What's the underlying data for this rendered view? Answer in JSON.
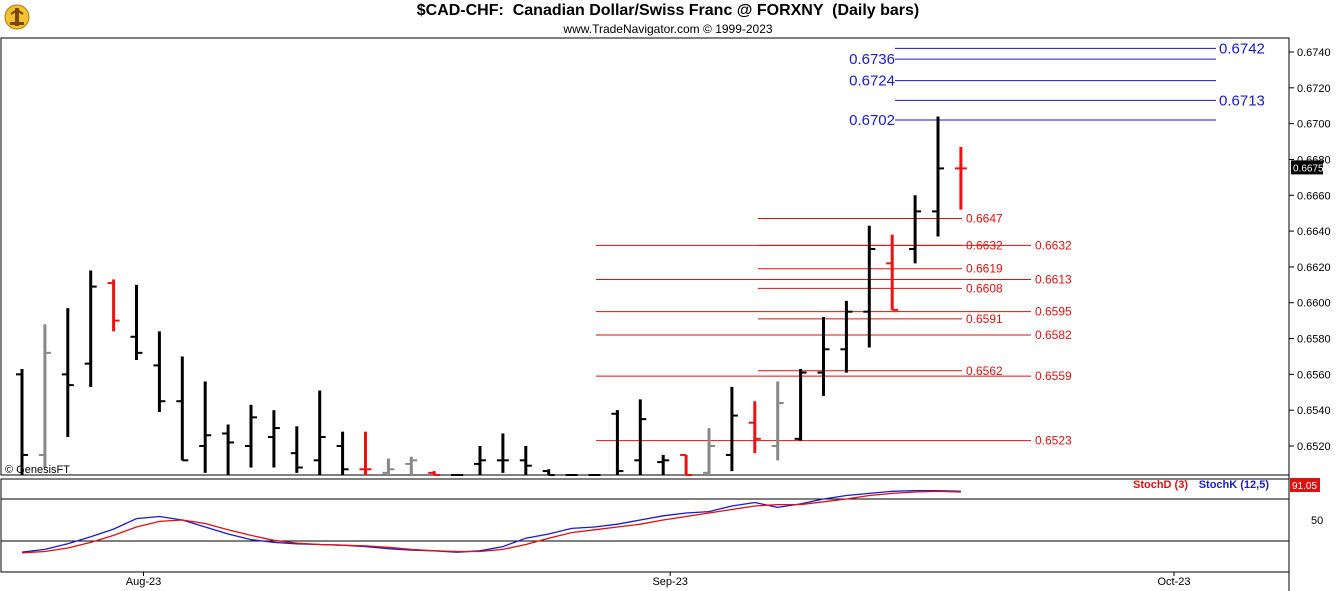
{
  "header": {
    "title": "$CAD-CHF:  Canadian Dollar/Swiss Franc @ FORXNY  (Daily bars)",
    "subtitle": "www.TradeNavigator.com © 1999-2023",
    "watermark": "© GenesisFT",
    "logo_icon": "trade-navigator-logo-icon"
  },
  "colors": {
    "up_bar": "#000000",
    "down_bar": "#ee1111",
    "flat_bar": "#888888",
    "resistance_line": "#1a1ad0",
    "support_line": "#dd1111",
    "stoch_d": "#dd1111",
    "stoch_k": "#1a1ad0",
    "last_price_bg": "#000000",
    "stoch_value_bg": "#dd1111"
  },
  "chart_data": [
    {
      "type": "ohlc",
      "title": "$CAD-CHF:  Canadian Dollar/Swiss Franc @ FORXNY  (Daily bars)",
      "ylim": [
        0.6503,
        0.675
      ],
      "y_ticks": [
        "0.6520",
        "0.6540",
        "0.6560",
        "0.6580",
        "0.6600",
        "0.6620",
        "0.6640",
        "0.6660",
        "0.6680",
        "0.6700",
        "0.6720",
        "0.6740"
      ],
      "x_tick_labels": [
        {
          "label": "Aug-23",
          "bar_index": 5
        },
        {
          "label": "Sep-23",
          "bar_index": 28
        },
        {
          "label": "Oct-23",
          "bar_index": 50
        }
      ],
      "last_price": "0.6675",
      "bars": [
        {
          "o": 0.656,
          "h": 0.6563,
          "l": 0.6503,
          "c": 0.6515,
          "dir": "up"
        },
        {
          "o": 0.6515,
          "h": 0.6588,
          "l": 0.6508,
          "c": 0.6572,
          "dir": "flat"
        },
        {
          "o": 0.656,
          "h": 0.6597,
          "l": 0.6525,
          "c": 0.6554,
          "dir": "up"
        },
        {
          "o": 0.6566,
          "h": 0.6618,
          "l": 0.6553,
          "c": 0.6609,
          "dir": "up"
        },
        {
          "o": 0.6611,
          "h": 0.6613,
          "l": 0.6584,
          "c": 0.659,
          "dir": "down"
        },
        {
          "o": 0.6581,
          "h": 0.661,
          "l": 0.6568,
          "c": 0.6572,
          "dir": "up"
        },
        {
          "o": 0.6565,
          "h": 0.6584,
          "l": 0.6539,
          "c": 0.6545,
          "dir": "up"
        },
        {
          "o": 0.6545,
          "h": 0.657,
          "l": 0.6512,
          "c": 0.6512,
          "dir": "up"
        },
        {
          "o": 0.652,
          "h": 0.6556,
          "l": 0.6505,
          "c": 0.6526,
          "dir": "up"
        },
        {
          "o": 0.6527,
          "h": 0.6532,
          "l": 0.6503,
          "c": 0.6522,
          "dir": "up"
        },
        {
          "o": 0.652,
          "h": 0.6543,
          "l": 0.6508,
          "c": 0.6536,
          "dir": "up"
        },
        {
          "o": 0.6525,
          "h": 0.654,
          "l": 0.6508,
          "c": 0.653,
          "dir": "up"
        },
        {
          "o": 0.6516,
          "h": 0.6531,
          "l": 0.6505,
          "c": 0.6508,
          "dir": "up"
        },
        {
          "o": 0.6512,
          "h": 0.6551,
          "l": 0.6503,
          "c": 0.6525,
          "dir": "up"
        },
        {
          "o": 0.652,
          "h": 0.6528,
          "l": 0.6503,
          "c": 0.6507,
          "dir": "up"
        },
        {
          "o": 0.6507,
          "h": 0.6528,
          "l": 0.6503,
          "c": 0.6507,
          "dir": "down"
        },
        {
          "o": 0.6505,
          "h": 0.6513,
          "l": 0.6503,
          "c": 0.6507,
          "dir": "flat"
        },
        {
          "o": 0.651,
          "h": 0.6514,
          "l": 0.6503,
          "c": 0.6512,
          "dir": "flat"
        },
        {
          "o": 0.6505,
          "h": 0.6506,
          "l": 0.6503,
          "c": 0.6503,
          "dir": "down"
        },
        {
          "o": 0.6503,
          "h": 0.6503,
          "l": 0.6503,
          "c": 0.6503,
          "dir": "up"
        },
        {
          "o": 0.651,
          "h": 0.652,
          "l": 0.6503,
          "c": 0.6512,
          "dir": "up"
        },
        {
          "o": 0.6512,
          "h": 0.6527,
          "l": 0.6505,
          "c": 0.6512,
          "dir": "up"
        },
        {
          "o": 0.6512,
          "h": 0.652,
          "l": 0.6503,
          "c": 0.6509,
          "dir": "up"
        },
        {
          "o": 0.6506,
          "h": 0.6507,
          "l": 0.6503,
          "c": 0.6503,
          "dir": "up"
        },
        {
          "o": 0.6503,
          "h": 0.6503,
          "l": 0.6503,
          "c": 0.6503,
          "dir": "up"
        },
        {
          "o": 0.6503,
          "h": 0.6503,
          "l": 0.6503,
          "c": 0.6503,
          "dir": "up"
        },
        {
          "o": 0.6538,
          "h": 0.654,
          "l": 0.6503,
          "c": 0.6506,
          "dir": "up"
        },
        {
          "o": 0.6512,
          "h": 0.6546,
          "l": 0.6503,
          "c": 0.6535,
          "dir": "up"
        },
        {
          "o": 0.6511,
          "h": 0.6515,
          "l": 0.6503,
          "c": 0.6512,
          "dir": "up"
        },
        {
          "o": 0.6515,
          "h": 0.6515,
          "l": 0.6503,
          "c": 0.6503,
          "dir": "down"
        },
        {
          "o": 0.6505,
          "h": 0.653,
          "l": 0.6503,
          "c": 0.652,
          "dir": "flat"
        },
        {
          "o": 0.6515,
          "h": 0.6553,
          "l": 0.6506,
          "c": 0.6537,
          "dir": "up"
        },
        {
          "o": 0.6533,
          "h": 0.6545,
          "l": 0.6516,
          "c": 0.6524,
          "dir": "down"
        },
        {
          "o": 0.652,
          "h": 0.6556,
          "l": 0.6512,
          "c": 0.6544,
          "dir": "flat"
        },
        {
          "o": 0.6524,
          "h": 0.6563,
          "l": 0.6523,
          "c": 0.6561,
          "dir": "up"
        },
        {
          "o": 0.6561,
          "h": 0.6592,
          "l": 0.6548,
          "c": 0.6574,
          "dir": "up"
        },
        {
          "o": 0.6574,
          "h": 0.6601,
          "l": 0.6561,
          "c": 0.6595,
          "dir": "up"
        },
        {
          "o": 0.6595,
          "h": 0.6643,
          "l": 0.6575,
          "c": 0.663,
          "dir": "up"
        },
        {
          "o": 0.6622,
          "h": 0.6638,
          "l": 0.6596,
          "c": 0.6596,
          "dir": "down"
        },
        {
          "o": 0.663,
          "h": 0.666,
          "l": 0.6622,
          "c": 0.6651,
          "dir": "up"
        },
        {
          "o": 0.6651,
          "h": 0.6704,
          "l": 0.6637,
          "c": 0.6675,
          "dir": "up"
        },
        {
          "o": 0.6675,
          "h": 0.6687,
          "l": 0.6652,
          "c": 0.6675,
          "dir": "down"
        }
      ],
      "resistance_levels": [
        "0.6742",
        "0.6736",
        "0.6724",
        "0.6713",
        "0.6702"
      ],
      "support_levels_near": [
        "0.6647",
        "0.6632",
        "0.6619",
        "0.6608",
        "0.6591",
        "0.6562"
      ],
      "support_levels_far": [
        "0.6632",
        "0.6613",
        "0.6595",
        "0.6582",
        "0.6559",
        "0.6523"
      ]
    },
    {
      "type": "line",
      "legend_d": "StochD (3)",
      "legend_k": "StochK (12,5)",
      "y_tick": "50",
      "ylim": [
        0,
        100
      ],
      "current_value": "91.05",
      "series": [
        {
          "name": "StochK (12,5)",
          "values": [
            4,
            8,
            16,
            26,
            37,
            52,
            55,
            50,
            40,
            30,
            22,
            18,
            16,
            15,
            14,
            12,
            9,
            7,
            6,
            4,
            6,
            12,
            24,
            30,
            38,
            40,
            44,
            50,
            56,
            60,
            62,
            70,
            75,
            68,
            73,
            80,
            85,
            88,
            91,
            92,
            92,
            91
          ]
        },
        {
          "name": "StochD (3)",
          "values": [
            3,
            5,
            10,
            18,
            28,
            40,
            48,
            50,
            45,
            36,
            28,
            21,
            17,
            15,
            14,
            13,
            11,
            8,
            6,
            5,
            5,
            8,
            15,
            24,
            32,
            36,
            40,
            44,
            50,
            55,
            60,
            65,
            70,
            72,
            72,
            76,
            80,
            85,
            88,
            90,
            91,
            90
          ]
        }
      ]
    }
  ]
}
